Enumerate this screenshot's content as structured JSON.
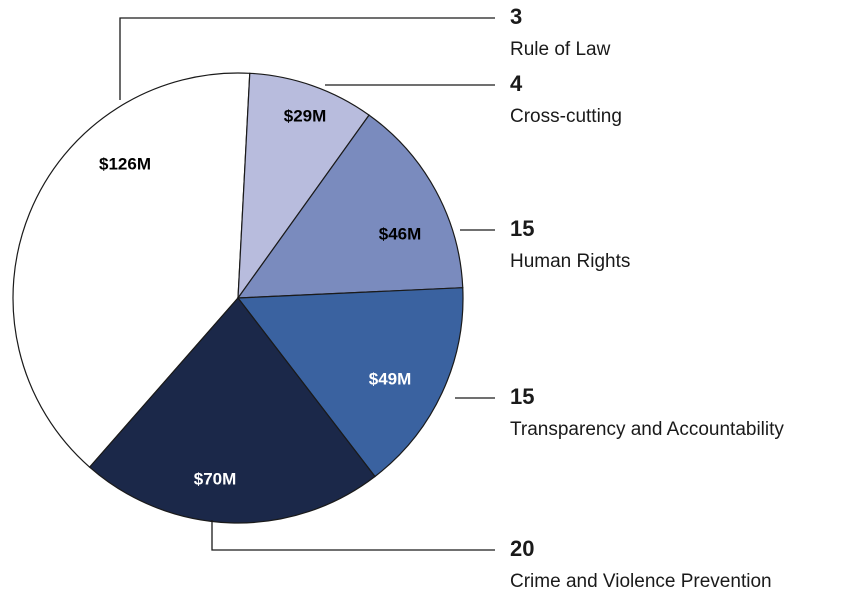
{
  "chart_data": {
    "type": "pie",
    "categories": [
      "Rule of Law",
      "Cross-cutting",
      "Human Rights",
      "Transparency and Accountability",
      "Crime and Violence Prevention"
    ],
    "values": [
      126,
      29,
      46,
      49,
      70
    ],
    "value_labels": [
      "$126M",
      "$29M",
      "$46M",
      "$49M",
      "$70M"
    ],
    "counts": [
      3,
      4,
      15,
      15,
      20
    ],
    "colors": [
      "#ffffff",
      "#b8bcdd",
      "#7a8bbe",
      "#3a62a0",
      "#1b2849"
    ]
  }
}
